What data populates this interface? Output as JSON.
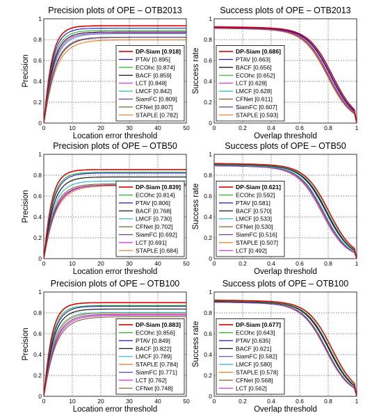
{
  "chart_data": [
    {
      "type": "line",
      "title": "Precision plots of OPE – OTB2013",
      "xlabel": "Location error threshold",
      "ylabel": "Precision",
      "xlim": [
        0,
        50
      ],
      "ylim": [
        0,
        1
      ],
      "xticks": [
        "0",
        "10",
        "20",
        "30",
        "40",
        "50"
      ],
      "yticks": [
        "0",
        "0.2",
        "0.4",
        "0.6",
        "0.8",
        "1"
      ],
      "grid": true,
      "legend_position": "bottom-right",
      "series": [
        {
          "name": "DP-Siam [0.918]",
          "value": 0.918,
          "color": "#e00000",
          "bold": true
        },
        {
          "name": "PTAV [0.895]",
          "value": 0.895,
          "color": "#1414e6"
        },
        {
          "name": "ECOhc [0.874]",
          "value": 0.874,
          "color": "#22b822"
        },
        {
          "name": "BACF [0.859]",
          "value": 0.859,
          "color": "#000000"
        },
        {
          "name": "LCT [0.848]",
          "value": 0.848,
          "color": "#e020e0"
        },
        {
          "name": "LMCF [0.842]",
          "value": 0.842,
          "color": "#1fb8d0"
        },
        {
          "name": "SiamFC [0.809]",
          "value": 0.809,
          "color": "#6a3d9a"
        },
        {
          "name": "CFNet [0.807]",
          "value": 0.807,
          "color": "#8a5a2b"
        },
        {
          "name": "STAPLE [0.782]",
          "value": 0.782,
          "color": "#f07a1a"
        }
      ]
    },
    {
      "type": "line",
      "title": "Success plots of OPE – OTB2013",
      "xlabel": "Overlap threshold",
      "ylabel": "Success rate",
      "xlim": [
        0,
        1
      ],
      "ylim": [
        0,
        1
      ],
      "xticks": [
        "0",
        "0.2",
        "0.4",
        "0.6",
        "0.8",
        "1"
      ],
      "yticks": [
        "0",
        "0.2",
        "0.4",
        "0.6",
        "0.8",
        "1"
      ],
      "grid": true,
      "legend_position": "bottom-left",
      "series": [
        {
          "name": "DP-Siam [0.686]",
          "value": 0.686,
          "color": "#e00000",
          "bold": true
        },
        {
          "name": "PTAV [0.663]",
          "value": 0.663,
          "color": "#1414e6"
        },
        {
          "name": "BACF [0.656]",
          "value": 0.656,
          "color": "#000000"
        },
        {
          "name": "ECOhc [0.652]",
          "value": 0.652,
          "color": "#22b822"
        },
        {
          "name": "LCT [0.628]",
          "value": 0.628,
          "color": "#e020e0"
        },
        {
          "name": "LMCF [0.628]",
          "value": 0.628,
          "color": "#1fb8d0"
        },
        {
          "name": "CFNet [0.611]",
          "value": 0.611,
          "color": "#8a5a2b"
        },
        {
          "name": "SiamFC [0.607]",
          "value": 0.607,
          "color": "#6a3d9a"
        },
        {
          "name": "STAPLE [0.593]",
          "value": 0.593,
          "color": "#f07a1a"
        }
      ]
    },
    {
      "type": "line",
      "title": "Precision plots of OPE – OTB50",
      "xlabel": "Location error threshold",
      "ylabel": "Precision",
      "xlim": [
        0,
        50
      ],
      "ylim": [
        0,
        1
      ],
      "xticks": [
        "0",
        "10",
        "20",
        "30",
        "40",
        "50"
      ],
      "yticks": [
        "0",
        "0.2",
        "0.4",
        "0.6",
        "0.8",
        "1"
      ],
      "grid": true,
      "legend_position": "bottom-right",
      "series": [
        {
          "name": "DP-Siam [0.839]",
          "value": 0.839,
          "color": "#e00000",
          "bold": true
        },
        {
          "name": "ECOhc [0.814]",
          "value": 0.814,
          "color": "#22b822"
        },
        {
          "name": "PTAV [0.806]",
          "value": 0.806,
          "color": "#1414e6"
        },
        {
          "name": "BACF [0.768]",
          "value": 0.768,
          "color": "#000000"
        },
        {
          "name": "LMCF [0.730]",
          "value": 0.73,
          "color": "#1fb8d0"
        },
        {
          "name": "CFNet [0.702]",
          "value": 0.702,
          "color": "#8a5a2b"
        },
        {
          "name": "SiamFC [0.692]",
          "value": 0.692,
          "color": "#6a3d9a"
        },
        {
          "name": "LCT [0.691]",
          "value": 0.691,
          "color": "#e020e0"
        },
        {
          "name": "STAPLE [0.684]",
          "value": 0.684,
          "color": "#f07a1a"
        }
      ]
    },
    {
      "type": "line",
      "title": "Success plots of OPE – OTB50",
      "xlabel": "Overlap threshold",
      "ylabel": "Success rate",
      "xlim": [
        0,
        1
      ],
      "ylim": [
        0,
        1
      ],
      "xticks": [
        "0",
        "0.2",
        "0.4",
        "0.6",
        "0.8",
        "1"
      ],
      "yticks": [
        "0",
        "0.2",
        "0.4",
        "0.6",
        "0.8",
        "1"
      ],
      "grid": true,
      "legend_position": "bottom-left",
      "series": [
        {
          "name": "DP-Siam [0.621]",
          "value": 0.621,
          "color": "#e00000",
          "bold": true
        },
        {
          "name": "ECOhc [0.592]",
          "value": 0.592,
          "color": "#22b822"
        },
        {
          "name": "PTAV [0.581]",
          "value": 0.581,
          "color": "#1414e6"
        },
        {
          "name": "BACF [0.570]",
          "value": 0.57,
          "color": "#000000"
        },
        {
          "name": "LMCF [0.533]",
          "value": 0.533,
          "color": "#1fb8d0"
        },
        {
          "name": "CFNet [0.530]",
          "value": 0.53,
          "color": "#8a5a2b"
        },
        {
          "name": "SiamFC [0.516]",
          "value": 0.516,
          "color": "#6a3d9a"
        },
        {
          "name": "STAPLE [0.507]",
          "value": 0.507,
          "color": "#f07a1a"
        },
        {
          "name": "LCT [0.492]",
          "value": 0.492,
          "color": "#e020e0"
        }
      ]
    },
    {
      "type": "line",
      "title": "Precision plots of OPE – OTB100",
      "xlabel": "Location error threshold",
      "ylabel": "Precision",
      "xlim": [
        0,
        50
      ],
      "ylim": [
        0,
        1
      ],
      "xticks": [
        "0",
        "10",
        "20",
        "30",
        "40",
        "50"
      ],
      "yticks": [
        "0",
        "0.2",
        "0.4",
        "0.6",
        "0.8",
        "1"
      ],
      "grid": true,
      "legend_position": "bottom-right",
      "series": [
        {
          "name": "DP-Siam [0.883]",
          "value": 0.883,
          "color": "#e00000",
          "bold": true
        },
        {
          "name": "ECOhc [0.856]",
          "value": 0.856,
          "color": "#22b822"
        },
        {
          "name": "PTAV [0.849]",
          "value": 0.849,
          "color": "#1414e6"
        },
        {
          "name": "BACF [0.822]",
          "value": 0.822,
          "color": "#000000"
        },
        {
          "name": "LMCF [0.789]",
          "value": 0.789,
          "color": "#1fb8d0"
        },
        {
          "name": "STAPLE [0.784]",
          "value": 0.784,
          "color": "#f07a1a"
        },
        {
          "name": "SiamFC [0.771]",
          "value": 0.771,
          "color": "#6a3d9a"
        },
        {
          "name": "LCT [0.762]",
          "value": 0.762,
          "color": "#e020e0"
        },
        {
          "name": "CFNet [0.748]",
          "value": 0.748,
          "color": "#8a5a2b"
        }
      ]
    },
    {
      "type": "line",
      "title": "Success plots of OPE – OTB100",
      "xlabel": "Overlap threshold",
      "ylabel": "Success rate",
      "xlim": [
        0,
        1
      ],
      "ylim": [
        0,
        1
      ],
      "xticks": [
        "0",
        "0.2",
        "0.4",
        "0.6",
        "0.8",
        "1"
      ],
      "yticks": [
        "0",
        "0.2",
        "0.4",
        "0.6",
        "0.8",
        "1"
      ],
      "grid": true,
      "legend_position": "bottom-left",
      "series": [
        {
          "name": "DP-Siam [0.677]",
          "value": 0.677,
          "color": "#e00000",
          "bold": true
        },
        {
          "name": "ECOhc [0.643]",
          "value": 0.643,
          "color": "#22b822"
        },
        {
          "name": "PTAV [0.635]",
          "value": 0.635,
          "color": "#1414e6"
        },
        {
          "name": "BACF [0.621]",
          "value": 0.621,
          "color": "#000000"
        },
        {
          "name": "SiamFC [0.582]",
          "value": 0.582,
          "color": "#6a3d9a"
        },
        {
          "name": "LMCF [0.580]",
          "value": 0.58,
          "color": "#1fb8d0"
        },
        {
          "name": "STAPLE [0.578]",
          "value": 0.578,
          "color": "#f07a1a"
        },
        {
          "name": "CFNet [0.568]",
          "value": 0.568,
          "color": "#8a5a2b"
        },
        {
          "name": "LCT [0.562]",
          "value": 0.562,
          "color": "#e020e0"
        }
      ]
    }
  ]
}
